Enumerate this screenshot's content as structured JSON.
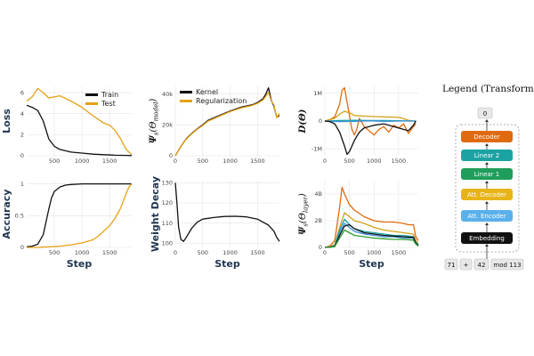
{
  "colors": {
    "train": "#111111",
    "test": "#e6a117",
    "kernel": "#111111",
    "regularization": "#e6a117",
    "multi": [
      "#e06a10",
      "#d4a017",
      "#1ba3a3",
      "#3a8dd6",
      "#111111",
      "#2ca02c"
    ]
  },
  "chart_data": [
    {
      "id": "loss",
      "type": "line",
      "ylabel": "Loss",
      "xlabel": "",
      "xlim": [
        0,
        1900
      ],
      "ylim": [
        0,
        6.6
      ],
      "xticks": [
        500,
        1000,
        1500
      ],
      "yticks": [
        0,
        2,
        4,
        6
      ],
      "legend": {
        "placement": "top-right",
        "entries": [
          "Train",
          "Test"
        ]
      },
      "series": [
        {
          "name": "Train",
          "color": "train",
          "x": [
            0,
            100,
            200,
            300,
            400,
            500,
            600,
            800,
            1000,
            1200,
            1400,
            1600,
            1800,
            1900
          ],
          "y": [
            4.8,
            4.6,
            4.3,
            3.3,
            1.6,
            0.9,
            0.6,
            0.35,
            0.25,
            0.15,
            0.1,
            0.05,
            0.03,
            0.02
          ]
        },
        {
          "name": "Test",
          "color": "test",
          "x": [
            0,
            100,
            200,
            300,
            400,
            500,
            600,
            800,
            1000,
            1200,
            1400,
            1500,
            1600,
            1700,
            1800,
            1900
          ],
          "y": [
            5.2,
            5.6,
            6.4,
            6.0,
            5.5,
            5.6,
            5.7,
            5.2,
            4.6,
            3.8,
            3.1,
            2.9,
            2.4,
            1.6,
            0.6,
            0.1
          ]
        }
      ]
    },
    {
      "id": "kernel",
      "type": "line",
      "ylabel_main": "Ψ",
      "ylabel_sub": "s",
      "ylabel_arg": "(Θ",
      "ylabel_argsub": "model",
      "ylabel_close": ")",
      "xlabel": "",
      "xlim": [
        0,
        1900
      ],
      "ylim": [
        0,
        45000
      ],
      "xticks": [
        0,
        500,
        1000,
        1500
      ],
      "yticks": [
        0,
        20000,
        40000
      ],
      "ytick_labels": [
        "0",
        "20k",
        "40k"
      ],
      "legend": {
        "placement": "top-left",
        "entries": [
          "Kernel",
          "Regularization"
        ]
      },
      "series": [
        {
          "name": "Kernel",
          "color": "kernel",
          "x": [
            0,
            100,
            200,
            300,
            400,
            500,
            600,
            700,
            800,
            1000,
            1200,
            1400,
            1500,
            1600,
            1650,
            1700,
            1750,
            1800,
            1850,
            1900
          ],
          "y": [
            0,
            6000,
            11000,
            14500,
            17500,
            20000,
            23000,
            24500,
            26000,
            29000,
            31500,
            33000,
            34500,
            37000,
            40000,
            44000,
            36000,
            32000,
            25000,
            26000
          ]
        },
        {
          "name": "Regularization",
          "color": "regularization",
          "x": [
            0,
            100,
            200,
            300,
            400,
            500,
            600,
            700,
            800,
            1000,
            1200,
            1400,
            1500,
            1600,
            1650,
            1700,
            1750,
            1800,
            1850,
            1900
          ],
          "y": [
            0,
            5800,
            10800,
            14200,
            17200,
            19600,
            22500,
            24000,
            25600,
            28600,
            31000,
            32600,
            34000,
            36200,
            38500,
            41000,
            35500,
            33000,
            24500,
            27500
          ]
        }
      ]
    },
    {
      "id": "dtheta",
      "type": "line",
      "ylabel_main": "D(Θ)",
      "xlabel": "",
      "xlim": [
        0,
        1900
      ],
      "ylim": [
        -1250000,
        1250000
      ],
      "xticks": [
        0,
        500,
        1000,
        1500
      ],
      "yticks": [
        -1000000,
        0,
        1000000
      ],
      "ytick_labels": [
        "-1M",
        "0",
        "1M"
      ],
      "series": [
        {
          "name": "",
          "color": "multi0",
          "x": [
            0,
            100,
            200,
            300,
            350,
            400,
            450,
            500,
            550,
            600,
            650,
            700,
            800,
            900,
            1000,
            1100,
            1200,
            1300,
            1400,
            1500,
            1600,
            1700,
            1800,
            1850
          ],
          "y": [
            0,
            50000,
            150000,
            600000,
            1100000,
            1200000,
            700000,
            200000,
            -300000,
            -500000,
            -300000,
            100000,
            -200000,
            -350000,
            -500000,
            -300000,
            -200000,
            -400000,
            -150000,
            -250000,
            -100000,
            -450000,
            -200000,
            -100000
          ]
        },
        {
          "name": "",
          "color": "multi1",
          "x": [
            0,
            100,
            200,
            300,
            400,
            500,
            600,
            800,
            1000,
            1200,
            1400,
            1500,
            1600,
            1700,
            1800,
            1850
          ],
          "y": [
            0,
            50000,
            100000,
            250000,
            350000,
            300000,
            200000,
            180000,
            160000,
            150000,
            140000,
            130000,
            90000,
            30000,
            0,
            0
          ]
        },
        {
          "name": "",
          "color": "multi2",
          "x": [
            0,
            300,
            600,
            900,
            1200,
            1500,
            1850
          ],
          "y": [
            0,
            20000,
            30000,
            20000,
            20000,
            10000,
            0
          ]
        },
        {
          "name": "",
          "color": "multi3",
          "x": [
            0,
            300,
            600,
            900,
            1200,
            1500,
            1850
          ],
          "y": [
            0,
            -20000,
            -10000,
            10000,
            -10000,
            0,
            0
          ]
        },
        {
          "name": "",
          "color": "multi4",
          "x": [
            0,
            100,
            200,
            300,
            400,
            450,
            500,
            550,
            600,
            700,
            800,
            1000,
            1200,
            1400,
            1600,
            1700,
            1800,
            1850
          ],
          "y": [
            0,
            -20000,
            -100000,
            -400000,
            -900000,
            -1200000,
            -1100000,
            -900000,
            -700000,
            -400000,
            -250000,
            -150000,
            -100000,
            -200000,
            -300000,
            -350000,
            -150000,
            0
          ]
        }
      ]
    },
    {
      "id": "accuracy",
      "type": "line",
      "ylabel": "Accuracy",
      "xlabel": "Step",
      "xlim": [
        0,
        1900
      ],
      "ylim": [
        0,
        1.05
      ],
      "xticks": [
        500,
        1000,
        1500
      ],
      "yticks": [
        0,
        0.5,
        1
      ],
      "ytick_labels": [
        "0",
        "0.5",
        "1"
      ],
      "series": [
        {
          "name": "Train",
          "color": "train",
          "x": [
            0,
            100,
            200,
            300,
            350,
            400,
            450,
            500,
            600,
            700,
            800,
            1000,
            1200,
            1400,
            1600,
            1800,
            1900
          ],
          "y": [
            0.01,
            0.02,
            0.05,
            0.2,
            0.4,
            0.6,
            0.78,
            0.88,
            0.95,
            0.98,
            0.99,
            1,
            1,
            1,
            1,
            1,
            1
          ]
        },
        {
          "name": "Test",
          "color": "test",
          "x": [
            0,
            200,
            400,
            600,
            800,
            1000,
            1200,
            1300,
            1400,
            1500,
            1600,
            1700,
            1800,
            1850,
            1900
          ],
          "y": [
            0,
            0,
            0.01,
            0.02,
            0.04,
            0.07,
            0.12,
            0.18,
            0.26,
            0.34,
            0.46,
            0.62,
            0.85,
            0.95,
            1
          ]
        }
      ]
    },
    {
      "id": "wdecay",
      "type": "line",
      "ylabel": "Weight Decay",
      "xlabel": "Step",
      "xlim": [
        0,
        1900
      ],
      "ylim": [
        98,
        131
      ],
      "xticks": [
        0,
        500,
        1000,
        1500
      ],
      "yticks": [
        100,
        110,
        120,
        130
      ],
      "series": [
        {
          "name": "",
          "color": "train",
          "x": [
            0,
            30,
            60,
            100,
            150,
            200,
            300,
            400,
            500,
            700,
            900,
            1100,
            1300,
            1500,
            1600,
            1700,
            1800,
            1850,
            1900
          ],
          "y": [
            130,
            120,
            108,
            102,
            101,
            103,
            107.5,
            110.5,
            112,
            112.8,
            113.3,
            113.4,
            113.1,
            112,
            110.5,
            109,
            106,
            103,
            101
          ]
        }
      ]
    },
    {
      "id": "layer",
      "type": "line",
      "ylabel_main": "Ψ",
      "ylabel_sub": "s",
      "ylabel_arg": "(Θ",
      "ylabel_argsub": "layer",
      "ylabel_close": ")",
      "xlabel": "Step",
      "xlim": [
        0,
        1900
      ],
      "ylim": [
        0,
        5000000000
      ],
      "xticks": [
        0,
        500,
        1000,
        1500
      ],
      "yticks": [
        0,
        2000000000,
        4000000000
      ],
      "ytick_labels": [
        "0",
        "2B",
        "4B"
      ],
      "series": [
        {
          "name": "",
          "color": "multi0",
          "x": [
            0,
            100,
            200,
            300,
            350,
            400,
            500,
            600,
            800,
            1000,
            1200,
            1400,
            1600,
            1700,
            1800,
            1850,
            1900
          ],
          "y": [
            0,
            100000000,
            500000000,
            3000000000,
            4500000000,
            4000000000,
            3200000000,
            2800000000,
            2300000000,
            2000000000,
            1900000000,
            1900000000,
            1800000000,
            1700000000,
            1700000000,
            800000000,
            500000000
          ]
        },
        {
          "name": "",
          "color": "multi1",
          "x": [
            0,
            100,
            200,
            300,
            400,
            500,
            600,
            800,
            1000,
            1200,
            1400,
            1600,
            1800,
            1850,
            1900
          ],
          "y": [
            0,
            50000000,
            200000000,
            1500000000,
            2600000000,
            2300000000,
            2000000000,
            1800000000,
            1500000000,
            1300000000,
            1200000000,
            1100000000,
            1000000000,
            500000000,
            300000000
          ]
        },
        {
          "name": "",
          "color": "multi2",
          "x": [
            0,
            100,
            200,
            300,
            400,
            500,
            600,
            800,
            1000,
            1200,
            1400,
            1600,
            1800,
            1850,
            1900
          ],
          "y": [
            0,
            30000000,
            150000000,
            1300000000,
            2100000000,
            1700000000,
            1400000000,
            1200000000,
            1100000000,
            1000000000,
            900000000,
            900000000,
            800000000,
            400000000,
            200000000
          ]
        },
        {
          "name": "",
          "color": "multi3",
          "x": [
            0,
            100,
            200,
            300,
            400,
            500,
            600,
            800,
            1000,
            1200,
            1400,
            1600,
            1800,
            1850,
            1900
          ],
          "y": [
            0,
            20000000,
            100000000,
            1100000000,
            1800000000,
            1500000000,
            1200000000,
            1000000000,
            900000000,
            800000000,
            800000000,
            700000000,
            700000000,
            300000000,
            200000000
          ]
        },
        {
          "name": "",
          "color": "multi4",
          "x": [
            0,
            100,
            200,
            300,
            400,
            500,
            600,
            800,
            1000,
            1200,
            1400,
            1600,
            1800,
            1850,
            1900
          ],
          "y": [
            0,
            20000000,
            80000000,
            900000000,
            1600000000,
            1700000000,
            1400000000,
            1100000000,
            1000000000,
            900000000,
            850000000,
            800000000,
            750000000,
            300000000,
            150000000
          ]
        },
        {
          "name": "",
          "color": "multi5",
          "x": [
            0,
            100,
            200,
            300,
            400,
            500,
            600,
            800,
            1000,
            1200,
            1400,
            1600,
            1800,
            1850,
            1900
          ],
          "y": [
            0,
            10000000,
            60000000,
            700000000,
            1300000000,
            1100000000,
            900000000,
            800000000,
            700000000,
            650000000,
            600000000,
            600000000,
            550000000,
            250000000,
            100000000
          ]
        }
      ]
    }
  ],
  "transformer_legend": {
    "title": "Legend (Transformer):",
    "output_token": "0",
    "blocks": [
      {
        "label": "Decoder",
        "color": "#e06a10"
      },
      {
        "label": "Linear 2",
        "color": "#1ba3a3"
      },
      {
        "label": "Linear 1",
        "color": "#1e9e5a"
      },
      {
        "label": "Att. Decoder",
        "color": "#e8b317"
      },
      {
        "label": "Att. Encoder",
        "color": "#5ab0ea"
      },
      {
        "label": "Embedding",
        "color": "#111111"
      }
    ],
    "input_tokens": [
      "71",
      "+",
      "42",
      "mod 113"
    ]
  }
}
